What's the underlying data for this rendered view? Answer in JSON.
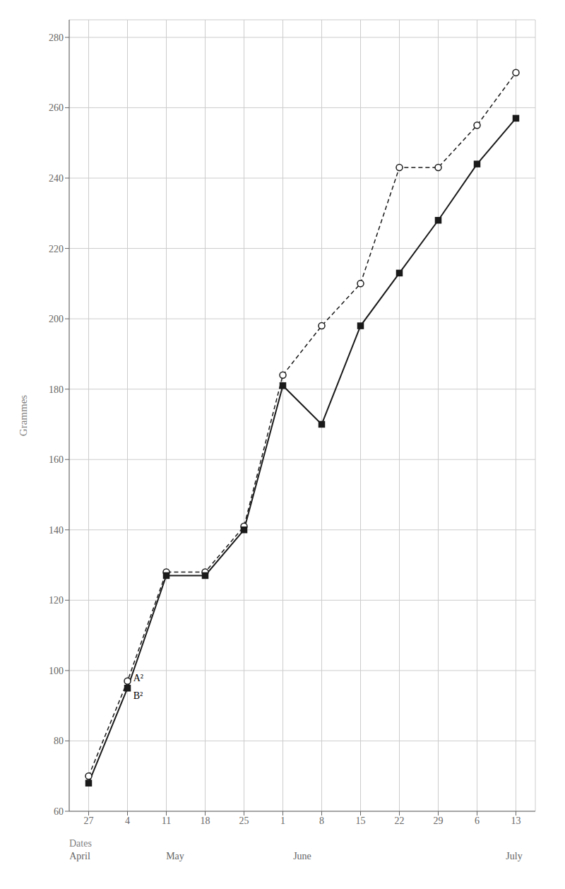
{
  "chart_data": {
    "type": "line",
    "title": "",
    "ylabel": "Grammes",
    "xlabel": "Dates",
    "categories": [
      "27",
      "4",
      "11",
      "18",
      "25",
      "1",
      "8",
      "15",
      "22",
      "29",
      "6",
      "13"
    ],
    "month_labels": [
      {
        "text": "April",
        "x": 0.25
      },
      {
        "text": "May",
        "x": 2.5
      },
      {
        "text": "June",
        "x": 5.5
      },
      {
        "text": "July",
        "x": 10.5
      }
    ],
    "series": [
      {
        "color": "#1a1a1a",
        "marker": "open_circle",
        "line_style": "dashed",
        "values": [
          70,
          97,
          128,
          128,
          141,
          184,
          198,
          210,
          243,
          243,
          255,
          270
        ]
      },
      {
        "color": "#1a1a1a",
        "marker": "square",
        "line_style": "solid",
        "values": [
          68,
          95,
          127,
          127,
          140,
          181,
          170,
          198,
          213,
          228,
          244,
          257
        ]
      }
    ],
    "annotations": [
      {
        "text": "A²",
        "x": 1.15,
        "y": 97
      },
      {
        "text": "B²",
        "x": 1.15,
        "y": 92
      }
    ],
    "ylim": [
      60,
      285
    ],
    "yticks": [
      60,
      80,
      100,
      120,
      140,
      160,
      180,
      200,
      220,
      240,
      260,
      280
    ],
    "grid": true
  }
}
